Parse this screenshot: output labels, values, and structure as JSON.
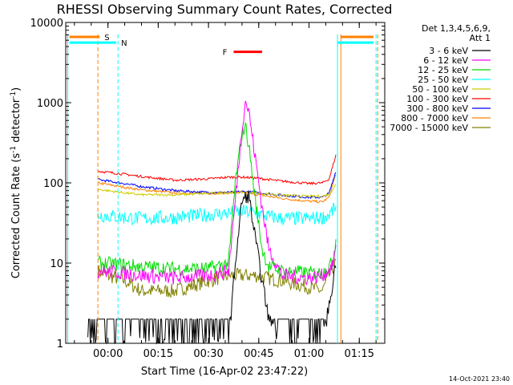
{
  "chart_data": {
    "type": "line",
    "title": "RHESSI Observing Summary Count Rates, Corrected",
    "xlabel": "Start Time (16-Apr-02 23:47:22)",
    "ylabel_main": "Corrected Count Rate (s",
    "ylabel_sup1": "-1",
    "ylabel_mid": " detector",
    "ylabel_sup2": "-1",
    "ylabel_end": ")",
    "y_scale": "log",
    "ylim": [
      1,
      10000
    ],
    "xlim_minutes": [
      -12.6,
      82.6
    ],
    "grid": false,
    "legend_position": "right",
    "footer_date": "14-Oct-2021 23:40",
    "y_ticks": [
      {
        "v": 1,
        "label": "1"
      },
      {
        "v": 10,
        "label": "10"
      },
      {
        "v": 100,
        "label": "100"
      },
      {
        "v": 1000,
        "label": "1000"
      },
      {
        "v": 10000,
        "label": "10000"
      }
    ],
    "x_ticks": [
      {
        "m": 0,
        "label": "00:00"
      },
      {
        "m": 15,
        "label": "00:15"
      },
      {
        "m": 30,
        "label": "00:30"
      },
      {
        "m": 45,
        "label": "00:45"
      },
      {
        "m": 60,
        "label": "01:00"
      },
      {
        "m": 75,
        "label": "01:15"
      }
    ],
    "legend_header": [
      "Det 1,3,4,5,6,9,",
      "Att 1"
    ],
    "series": [
      {
        "name": "3 - 6 keV",
        "color": "#000000",
        "points": [
          [
            -6,
            1
          ],
          [
            0,
            1
          ],
          [
            10,
            1
          ],
          [
            20,
            1
          ],
          [
            30,
            1
          ],
          [
            36,
            1
          ],
          [
            38,
            10
          ],
          [
            40,
            60
          ],
          [
            42,
            70
          ],
          [
            44,
            20
          ],
          [
            46,
            6
          ],
          [
            48,
            2
          ],
          [
            52,
            1
          ],
          [
            60,
            1
          ],
          [
            64,
            1
          ],
          [
            66,
            3
          ],
          [
            68,
            10
          ]
        ],
        "noise": true
      },
      {
        "name": "6 - 12 keV",
        "color": "#ff00ff",
        "points": [
          [
            -3,
            8
          ],
          [
            5,
            7.5
          ],
          [
            10,
            7
          ],
          [
            20,
            6.5
          ],
          [
            30,
            7
          ],
          [
            36,
            8
          ],
          [
            38,
            60
          ],
          [
            40,
            500
          ],
          [
            41,
            1050
          ],
          [
            42,
            800
          ],
          [
            44,
            200
          ],
          [
            46,
            50
          ],
          [
            48,
            15
          ],
          [
            52,
            7
          ],
          [
            60,
            6.5
          ],
          [
            64,
            7
          ],
          [
            67,
            9
          ],
          [
            68,
            15
          ]
        ],
        "noise": true
      },
      {
        "name": "12 - 25 keV",
        "color": "#00dd00",
        "points": [
          [
            -3,
            10
          ],
          [
            5,
            9.5
          ],
          [
            10,
            9
          ],
          [
            20,
            8.5
          ],
          [
            30,
            8.5
          ],
          [
            36,
            10
          ],
          [
            38,
            100
          ],
          [
            40,
            400
          ],
          [
            41,
            520
          ],
          [
            42,
            300
          ],
          [
            44,
            60
          ],
          [
            46,
            15
          ],
          [
            48,
            9
          ],
          [
            52,
            8
          ],
          [
            60,
            7.5
          ],
          [
            64,
            7.5
          ],
          [
            67,
            10
          ],
          [
            68,
            20
          ]
        ],
        "noise": true
      },
      {
        "name": "25 - 50 keV",
        "color": "#00ffff",
        "points": [
          [
            -3,
            40
          ],
          [
            5,
            37
          ],
          [
            10,
            36
          ],
          [
            20,
            37
          ],
          [
            30,
            40
          ],
          [
            36,
            42
          ],
          [
            40,
            44
          ],
          [
            44,
            42
          ],
          [
            48,
            38
          ],
          [
            52,
            36
          ],
          [
            60,
            36
          ],
          [
            64,
            37
          ],
          [
            66,
            40
          ],
          [
            68,
            50
          ]
        ],
        "noise": true
      },
      {
        "name": "50 - 100 keV",
        "color": "#cccc00",
        "points": [
          [
            -3,
            83
          ],
          [
            5,
            75
          ],
          [
            10,
            71
          ],
          [
            20,
            71
          ],
          [
            30,
            74
          ],
          [
            36,
            76
          ],
          [
            40,
            76
          ],
          [
            44,
            75
          ],
          [
            52,
            70
          ],
          [
            60,
            68
          ],
          [
            64,
            68
          ],
          [
            66,
            72
          ],
          [
            68,
            95
          ]
        ],
        "noise": false
      },
      {
        "name": "100 - 300 keV",
        "color": "#ff0000",
        "points": [
          [
            -3,
            140
          ],
          [
            5,
            128
          ],
          [
            10,
            120
          ],
          [
            20,
            108
          ],
          [
            30,
            112
          ],
          [
            36,
            118
          ],
          [
            40,
            118
          ],
          [
            44,
            115
          ],
          [
            52,
            105
          ],
          [
            60,
            98
          ],
          [
            64,
            100
          ],
          [
            66,
            112
          ],
          [
            68,
            220
          ]
        ],
        "noise": false
      },
      {
        "name": "300 - 800 keV",
        "color": "#0000ff",
        "points": [
          [
            -3,
            110
          ],
          [
            5,
            98
          ],
          [
            10,
            90
          ],
          [
            20,
            80
          ],
          [
            30,
            76
          ],
          [
            36,
            76
          ],
          [
            40,
            78
          ],
          [
            44,
            76
          ],
          [
            52,
            70
          ],
          [
            60,
            66
          ],
          [
            64,
            66
          ],
          [
            66,
            74
          ],
          [
            68,
            140
          ]
        ],
        "noise": false
      },
      {
        "name": "800 - 7000 keV",
        "color": "#ff8000",
        "points": [
          [
            -3,
            100
          ],
          [
            5,
            88
          ],
          [
            10,
            82
          ],
          [
            20,
            75
          ],
          [
            30,
            74
          ],
          [
            36,
            75
          ],
          [
            40,
            76
          ],
          [
            44,
            72
          ],
          [
            52,
            64
          ],
          [
            60,
            59
          ],
          [
            64,
            58
          ],
          [
            66,
            66
          ],
          [
            68,
            130
          ]
        ],
        "noise": false
      },
      {
        "name": "7000 - 15000 keV",
        "color": "#808000",
        "points": [
          [
            -3,
            8
          ],
          [
            0,
            7
          ],
          [
            5,
            6
          ],
          [
            10,
            4.5
          ],
          [
            20,
            4.5
          ],
          [
            30,
            6
          ],
          [
            36,
            7
          ],
          [
            44,
            7
          ],
          [
            52,
            6
          ],
          [
            60,
            5
          ],
          [
            64,
            4.5
          ],
          [
            66,
            7
          ],
          [
            68,
            10
          ]
        ],
        "noise": true
      }
    ],
    "annotations": {
      "S": {
        "label": "S",
        "color": "#ff8000",
        "line_start": -11.5,
        "line_end": -2.5,
        "level": 6600,
        "y_top": 7100,
        "vlines": [
          -3,
          69.5,
          80.5
        ]
      },
      "N": {
        "label": "N",
        "color": "#00ffff",
        "line_start": -11.5,
        "line_end": 2.5,
        "level": 5600,
        "y_top": 7100,
        "vlines": [
          -12,
          3,
          68.5,
          80
        ]
      },
      "F": {
        "label": "F",
        "color": "#ff0000",
        "line_start": 37.5,
        "line_end": 46,
        "level": 4300
      }
    }
  }
}
